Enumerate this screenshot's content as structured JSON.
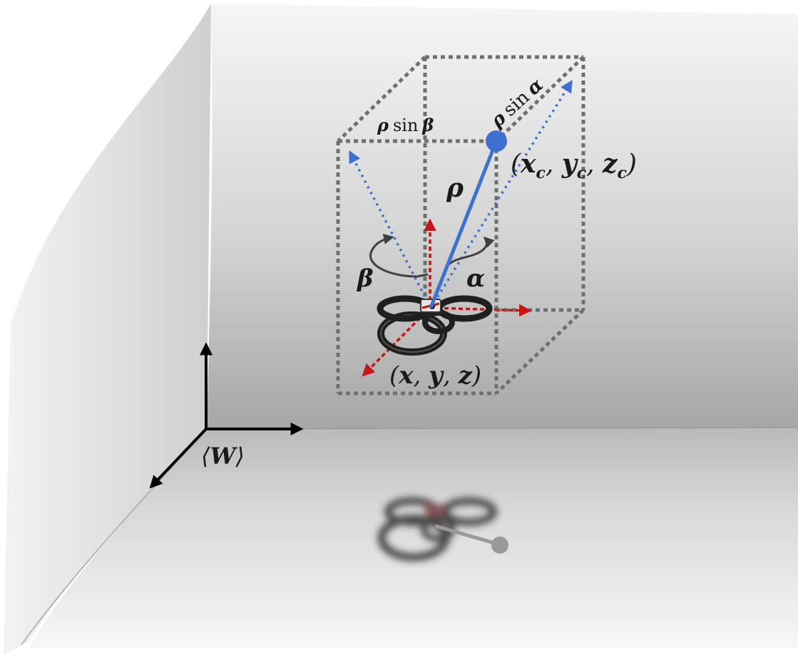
{
  "diagram": {
    "labels": {
      "world_frame": "⟨W⟩",
      "drone_position": "(x, y, z)",
      "camera_target": "(x_c, y_c, z_c)",
      "distance": "ρ",
      "yaw_angle": "β",
      "pitch_angle": "α",
      "rho_sin_beta": "ρ sin β",
      "rho_sin_alpha": "ρ sin α"
    },
    "label_parts": {
      "rho": "ρ",
      "sin": "sin",
      "beta": "β",
      "alpha": "α",
      "x": "x",
      "y": "y",
      "z": "z",
      "c": "c",
      "world_letter": "W"
    },
    "colors": {
      "wall_light": "#f4f4f4",
      "wall_dark": "#a9a9a9",
      "floor_light": "#c9c9c9",
      "floor_dark": "#f2f2f2",
      "box_dots": "#6f6f6f",
      "ray": "#3f6fcf",
      "drone_axis": "#c81414",
      "world_axis": "#000000",
      "rotation_arrow": "#404040",
      "shadow": "#9a9a9a"
    }
  }
}
